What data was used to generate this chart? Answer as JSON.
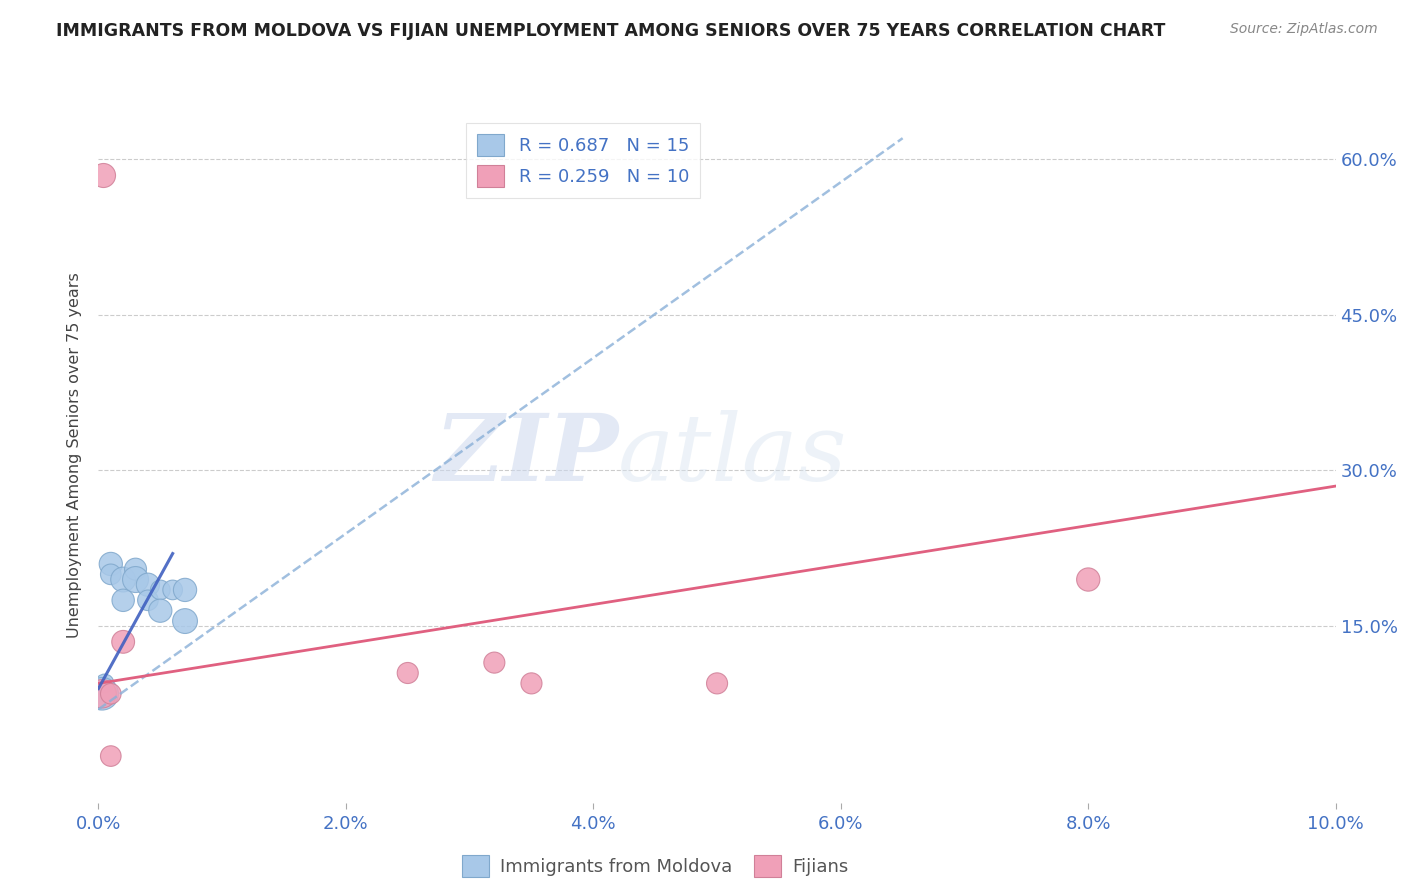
{
  "title": "IMMIGRANTS FROM MOLDOVA VS FIJIAN UNEMPLOYMENT AMONG SENIORS OVER 75 YEARS CORRELATION CHART",
  "source": "Source: ZipAtlas.com",
  "ylabel": "Unemployment Among Seniors over 75 years",
  "xlim": [
    0.0,
    0.1
  ],
  "ylim": [
    -0.02,
    0.65
  ],
  "xticks": [
    0.0,
    0.02,
    0.04,
    0.06,
    0.08,
    0.1
  ],
  "yticks": [
    0.15,
    0.3,
    0.45,
    0.6
  ],
  "ytick_labels": [
    "15.0%",
    "30.0%",
    "45.0%",
    "60.0%"
  ],
  "xtick_labels": [
    "0.0%",
    "2.0%",
    "4.0%",
    "6.0%",
    "8.0%",
    "10.0%"
  ],
  "legend_r1": "R = 0.687",
  "legend_n1": "N = 15",
  "legend_r2": "R = 0.259",
  "legend_n2": "N = 10",
  "color_moldova": "#a8c8e8",
  "color_fijian": "#f0a0b8",
  "color_trendline_moldova": "#8ab0d8",
  "color_trendline_fijian": "#e06080",
  "color_trendline_moldova_solid": "#4060c0",
  "watermark_zip": "ZIP",
  "watermark_atlas": "atlas",
  "moldova_x": [
    0.0005,
    0.001,
    0.001,
    0.002,
    0.002,
    0.003,
    0.003,
    0.004,
    0.004,
    0.005,
    0.005,
    0.006,
    0.007,
    0.007,
    0.0003
  ],
  "moldova_y": [
    0.095,
    0.21,
    0.2,
    0.195,
    0.175,
    0.205,
    0.195,
    0.19,
    0.175,
    0.185,
    0.165,
    0.185,
    0.185,
    0.155,
    0.085
  ],
  "moldova_size": [
    180,
    280,
    220,
    320,
    260,
    250,
    350,
    280,
    220,
    200,
    280,
    200,
    280,
    320,
    550
  ],
  "fijian_x": [
    0.0003,
    0.001,
    0.002,
    0.025,
    0.035,
    0.05,
    0.08,
    0.001,
    0.032
  ],
  "fijian_y": [
    0.085,
    0.085,
    0.135,
    0.105,
    0.095,
    0.095,
    0.195,
    0.025,
    0.115
  ],
  "fijian_size": [
    420,
    220,
    270,
    230,
    230,
    230,
    280,
    220,
    230
  ],
  "fijian_outlier_x": [
    0.0004
  ],
  "fijian_outlier_y": [
    0.585
  ],
  "fijian_outlier_size": [
    300
  ],
  "moldova_trend_x": [
    0.0,
    0.065
  ],
  "moldova_trend_y": [
    0.07,
    0.62
  ],
  "fijian_trend_x": [
    0.0,
    0.1
  ],
  "fijian_trend_y": [
    0.095,
    0.285
  ]
}
